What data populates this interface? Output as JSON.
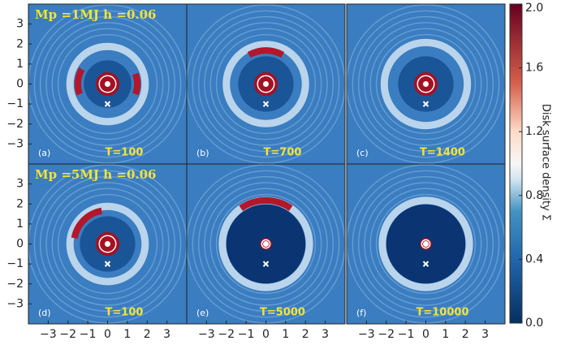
{
  "chart_data": [
    {
      "type": "heatmap",
      "annotation": "Mp =1MJ h =0.06",
      "panel_label": "(a)",
      "time_label": "T=100",
      "xlim": [
        -4,
        4
      ],
      "ylim": [
        -4,
        4
      ],
      "yticks": [
        {
          "value": -3,
          "label": "−3"
        },
        {
          "value": -2,
          "label": "−2"
        },
        {
          "value": -1,
          "label": "−1"
        },
        0,
        1,
        2,
        3
      ]
    },
    {
      "type": "heatmap",
      "panel_label": "(b)",
      "time_label": "T=700",
      "xlim": [
        -4,
        4
      ],
      "ylim": [
        -4,
        4
      ]
    },
    {
      "type": "heatmap",
      "panel_label": "(c)",
      "time_label": "T=1400",
      "xlim": [
        -4,
        4
      ],
      "ylim": [
        -4,
        4
      ]
    },
    {
      "type": "heatmap",
      "annotation": "Mp =5MJ h =0.06",
      "panel_label": "(d)",
      "time_label": "T=100",
      "xlim": [
        -4,
        4
      ],
      "ylim": [
        -4,
        4
      ],
      "xticks": [
        {
          "value": -3,
          "label": "−3"
        },
        {
          "value": -2,
          "label": "−2"
        },
        {
          "value": -1,
          "label": "−1"
        },
        0,
        1,
        2,
        3
      ],
      "yticks": [
        {
          "value": -3,
          "label": "−3"
        },
        {
          "value": -2,
          "label": "−2"
        },
        {
          "value": -1,
          "label": "−1"
        },
        0,
        1,
        2,
        3
      ]
    },
    {
      "type": "heatmap",
      "panel_label": "(e)",
      "time_label": "T=5000",
      "xlim": [
        -4,
        4
      ],
      "ylim": [
        -4,
        4
      ],
      "xticks": [
        {
          "value": -3,
          "label": "−3"
        },
        {
          "value": -2,
          "label": "−2"
        },
        {
          "value": -1,
          "label": "−1"
        },
        0,
        1,
        2,
        3
      ]
    },
    {
      "type": "heatmap",
      "panel_label": "(f)",
      "time_label": "T=10000",
      "xlim": [
        -4,
        4
      ],
      "ylim": [
        -4,
        4
      ],
      "xticks": [
        {
          "value": -3,
          "label": "−3"
        },
        {
          "value": -2,
          "label": "−2"
        },
        {
          "value": -1,
          "label": "−1"
        },
        0,
        1,
        2,
        3
      ]
    }
  ],
  "colorbar": {
    "label": "Disk surface density Σ",
    "lim": [
      0,
      2
    ],
    "ticks": [
      {
        "value": 0,
        "label": "0.0"
      },
      0.4,
      0.8,
      1.2,
      1.6,
      {
        "value": 2,
        "label": "2.0"
      }
    ]
  }
}
